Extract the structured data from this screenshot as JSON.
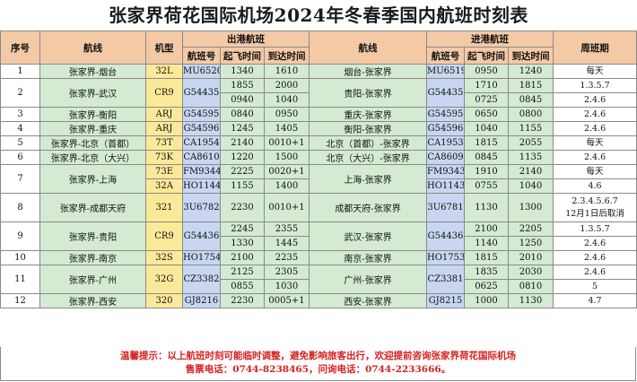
{
  "title": "张家界荷花国际机场2024年冬春季国内航班时刻表",
  "headers": {
    "seq": "序号",
    "route": "航线",
    "aircraft": "机型",
    "outbound": "出港航班",
    "inbound": "进港航班",
    "flight_no": "航班号",
    "depart": "起飞时间",
    "arrive": "到达时间",
    "days": "周班期"
  },
  "rows": [
    {
      "seq": "1",
      "route_out": "张家界-烟台",
      "sub": [
        {
          "type": "32L",
          "out_no": "MU6520",
          "out_dep": "1340",
          "out_arr": "1610",
          "in_no": "MU6519",
          "in_dep": "0950",
          "in_arr": "1240",
          "days": "每天"
        }
      ],
      "route_in": "烟台-张家界"
    },
    {
      "seq": "2",
      "route_out": "张家界-武汉",
      "sub": [
        {
          "type": "CR9",
          "out_no": "G54435",
          "out_dep": "1855",
          "out_arr": "2000",
          "in_no": "G54435",
          "in_dep": "1710",
          "in_arr": "1815",
          "days": "1.3.5.7"
        },
        {
          "out_dep": "0940",
          "out_arr": "1040",
          "in_dep": "0725",
          "in_arr": "0845",
          "days": "2.4.6"
        }
      ],
      "route_in": "贵阳-张家界"
    },
    {
      "seq": "3",
      "route_out": "张家界-衡阳",
      "sub": [
        {
          "type": "ARJ",
          "out_no": "G54595",
          "out_dep": "0840",
          "out_arr": "0950",
          "in_no": "G54595",
          "in_dep": "0650",
          "in_arr": "0800",
          "days": "2.4.6"
        }
      ],
      "route_in": "重庆-张家界"
    },
    {
      "seq": "4",
      "route_out": "张家界-重庆",
      "sub": [
        {
          "type": "ARJ",
          "out_no": "G54596",
          "out_dep": "1245",
          "out_arr": "1405",
          "in_no": "G54596",
          "in_dep": "1040",
          "in_arr": "1155",
          "days": "2.4.6"
        }
      ],
      "route_in": "衡阳-张家界"
    },
    {
      "seq": "5",
      "route_out": "张家界-北京（首都）",
      "sub": [
        {
          "type": "73T",
          "out_no": "CA1954",
          "out_dep": "2140",
          "out_arr": "0010+1",
          "in_no": "CA1953",
          "in_dep": "1815",
          "in_arr": "2055",
          "days": "每天"
        }
      ],
      "route_in": "北京（首都）-张家界"
    },
    {
      "seq": "6",
      "route_out": "张家界-北京（大兴）",
      "sub": [
        {
          "type": "73K",
          "out_no": "CA8610",
          "out_dep": "1220",
          "out_arr": "1500",
          "in_no": "CA8609",
          "in_dep": "0845",
          "in_arr": "1135",
          "days": "2.4.6"
        }
      ],
      "route_in": "北京（大兴）-张家界"
    },
    {
      "seq": "7",
      "route_out": "张家界-上海",
      "sub": [
        {
          "type": "73E",
          "out_no": "FM9344",
          "out_dep": "2225",
          "out_arr": "0020+1",
          "in_no": "FM9343",
          "in_dep": "1910",
          "in_arr": "2140",
          "days": "每天"
        },
        {
          "type": "32A",
          "out_no": "HO1144",
          "out_dep": "1155",
          "out_arr": "1400",
          "in_no": "HO1143",
          "in_dep": "0755",
          "in_arr": "1040",
          "days": "4.6"
        }
      ],
      "route_in": "上海-张家界"
    },
    {
      "seq": "8",
      "route_out": "张家界-成都天府",
      "sub": [
        {
          "type": "321",
          "out_no": "3U6782",
          "out_dep": "2230",
          "out_arr": "0010+1",
          "in_no": "3U6781",
          "in_dep": "1130",
          "in_arr": "1300",
          "days": "2.3.4.5.6.7",
          "days2": "12月1日后取消"
        }
      ],
      "route_in": "成都天府-张家界"
    },
    {
      "seq": "9",
      "route_out": "张家界-贵阳",
      "sub": [
        {
          "type": "CR9",
          "out_no": "G54436",
          "out_dep": "2245",
          "out_arr": "2355",
          "in_no": "G54436",
          "in_dep": "2100",
          "in_arr": "2205",
          "days": "1.3.5.7"
        },
        {
          "out_dep": "1330",
          "out_arr": "1445",
          "in_dep": "1140",
          "in_arr": "1250",
          "days": "2.4.6"
        }
      ],
      "route_in": "武汉-张家界"
    },
    {
      "seq": "10",
      "route_out": "张家界-南京",
      "sub": [
        {
          "type": "32S",
          "out_no": "HO1754",
          "out_dep": "2100",
          "out_arr": "2235",
          "in_no": "HO1753",
          "in_dep": "1815",
          "in_arr": "2010",
          "days": "2.4.6"
        }
      ],
      "route_in": "南京-张家界"
    },
    {
      "seq": "11",
      "route_out": "张家界-广州",
      "sub": [
        {
          "type": "32G",
          "out_no": "CZ3382",
          "out_dep": "2125",
          "out_arr": "2305",
          "in_no": "CZ3381",
          "in_dep": "1835",
          "in_arr": "2030",
          "days": "2.4.6"
        },
        {
          "out_dep": "0855",
          "out_arr": "1030",
          "in_dep": "0625",
          "in_arr": "0810",
          "days": "5"
        }
      ],
      "route_in": "广州-张家界"
    },
    {
      "seq": "12",
      "route_out": "张家界-西安",
      "sub": [
        {
          "type": "320",
          "out_no": "GJ8216",
          "out_dep": "2230",
          "out_arr": "0005+1",
          "in_no": "GJ8215",
          "in_dep": "1000",
          "in_arr": "1130",
          "days": "4.7"
        }
      ],
      "route_in": "西安-张家界"
    }
  ],
  "footer": {
    "line1": "温馨提示：以上航班时刻可能临时调整，避免影响旅客出行，欢迎提前咨询张家界荷花国际机场",
    "line2": "售票电话：0744-8238465，问询电话：0744-2233666。"
  }
}
